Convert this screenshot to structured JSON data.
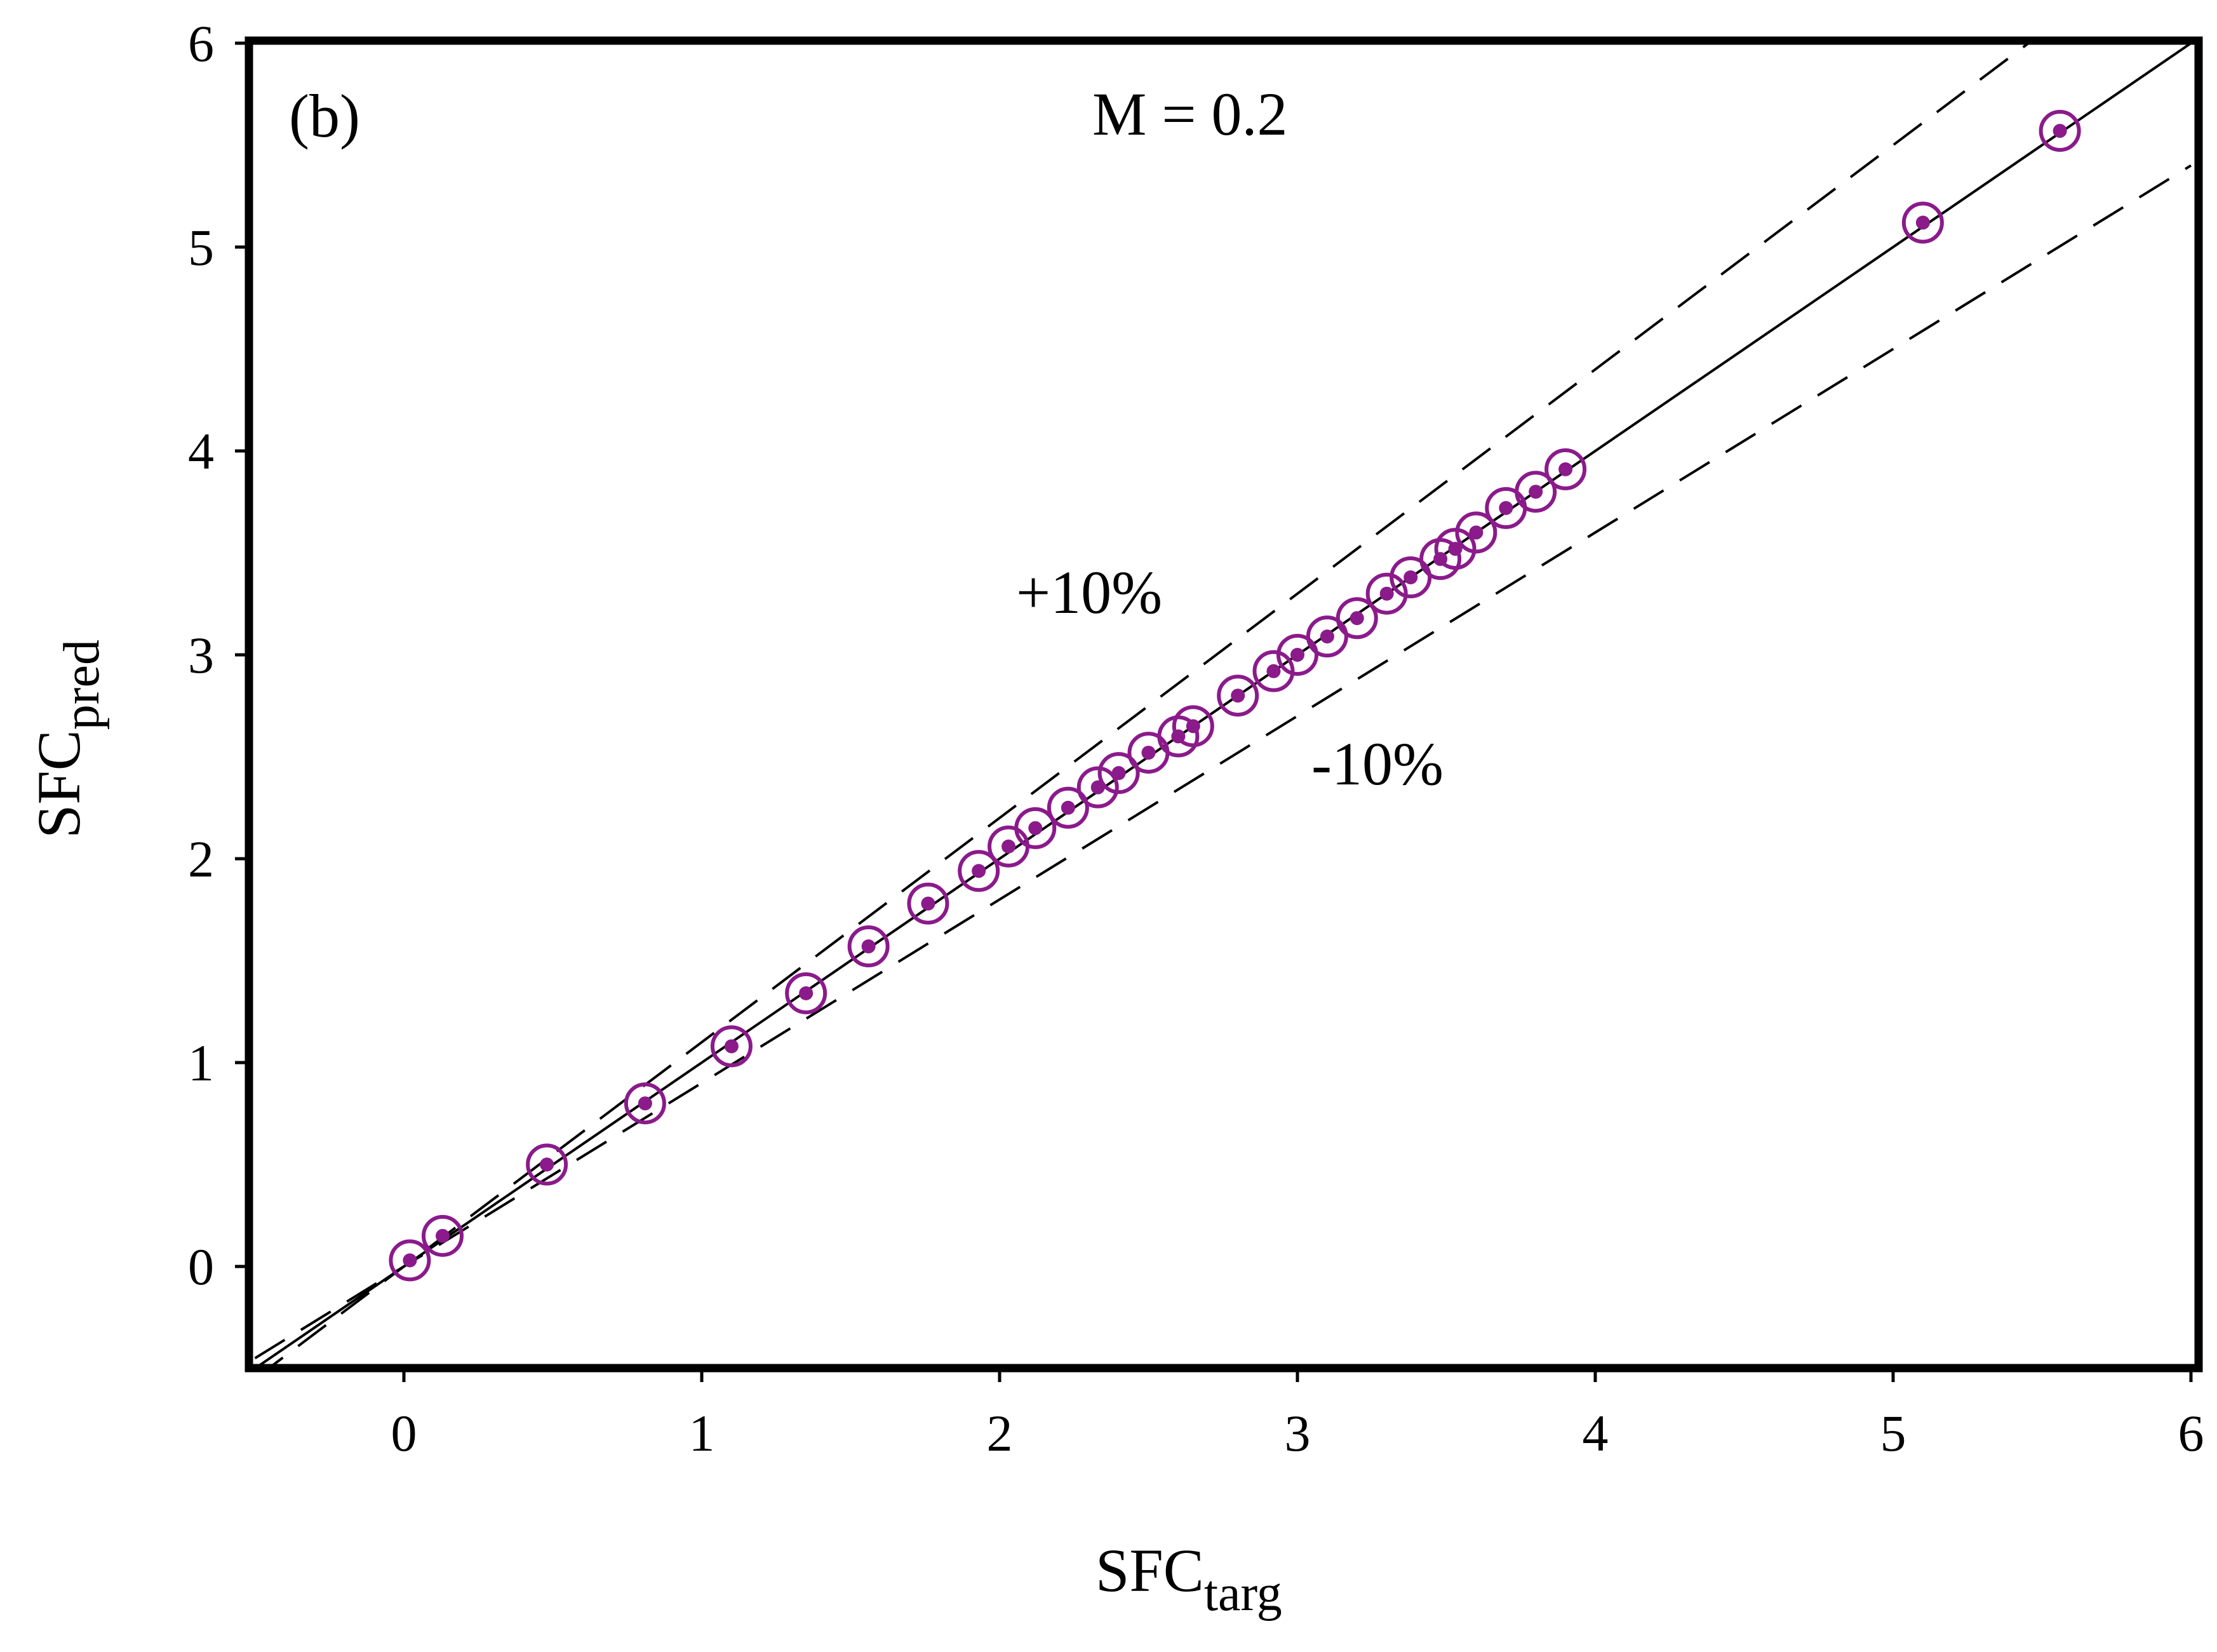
{
  "chart_data": {
    "type": "scatter",
    "panel_label": "(b)",
    "title": "M = 0.2",
    "xlabel": "SFC",
    "xlabel_sub": "targ",
    "ylabel": "SFC",
    "ylabel_sub": "pred",
    "xlim": [
      -0.5,
      6
    ],
    "ylim": [
      -0.5,
      6
    ],
    "xticks": [
      "0",
      "1",
      "2",
      "3",
      "4",
      "5",
      "6"
    ],
    "yticks": [
      "0",
      "1",
      "2",
      "3",
      "4",
      "5",
      "6"
    ],
    "reference_lines": [
      {
        "name": "y = x",
        "slope": 1.0,
        "style": "solid"
      },
      {
        "name": "+10%",
        "slope": 1.1,
        "style": "dashed"
      },
      {
        "name": "-10%",
        "slope": 0.9,
        "style": "dashed"
      }
    ],
    "annotations": {
      "plus": "+10%",
      "minus": "-10%"
    },
    "series": [
      {
        "name": "data",
        "marker": "circle-dot",
        "color": "#8b1a8b",
        "x": [
          0.02,
          0.13,
          0.48,
          0.81,
          1.1,
          1.35,
          1.56,
          1.76,
          1.93,
          2.03,
          2.12,
          2.23,
          2.33,
          2.4,
          2.5,
          2.6,
          2.65,
          2.8,
          2.92,
          3.0,
          3.1,
          3.2,
          3.3,
          3.38,
          3.48,
          3.53,
          3.6,
          3.7,
          3.8,
          3.9,
          5.1,
          5.56
        ],
        "y": [
          0.03,
          0.15,
          0.5,
          0.8,
          1.08,
          1.34,
          1.57,
          1.78,
          1.94,
          2.06,
          2.15,
          2.25,
          2.35,
          2.42,
          2.52,
          2.6,
          2.65,
          2.8,
          2.92,
          3.0,
          3.09,
          3.18,
          3.3,
          3.38,
          3.47,
          3.52,
          3.6,
          3.72,
          3.8,
          3.91,
          5.12,
          5.57
        ]
      }
    ]
  }
}
